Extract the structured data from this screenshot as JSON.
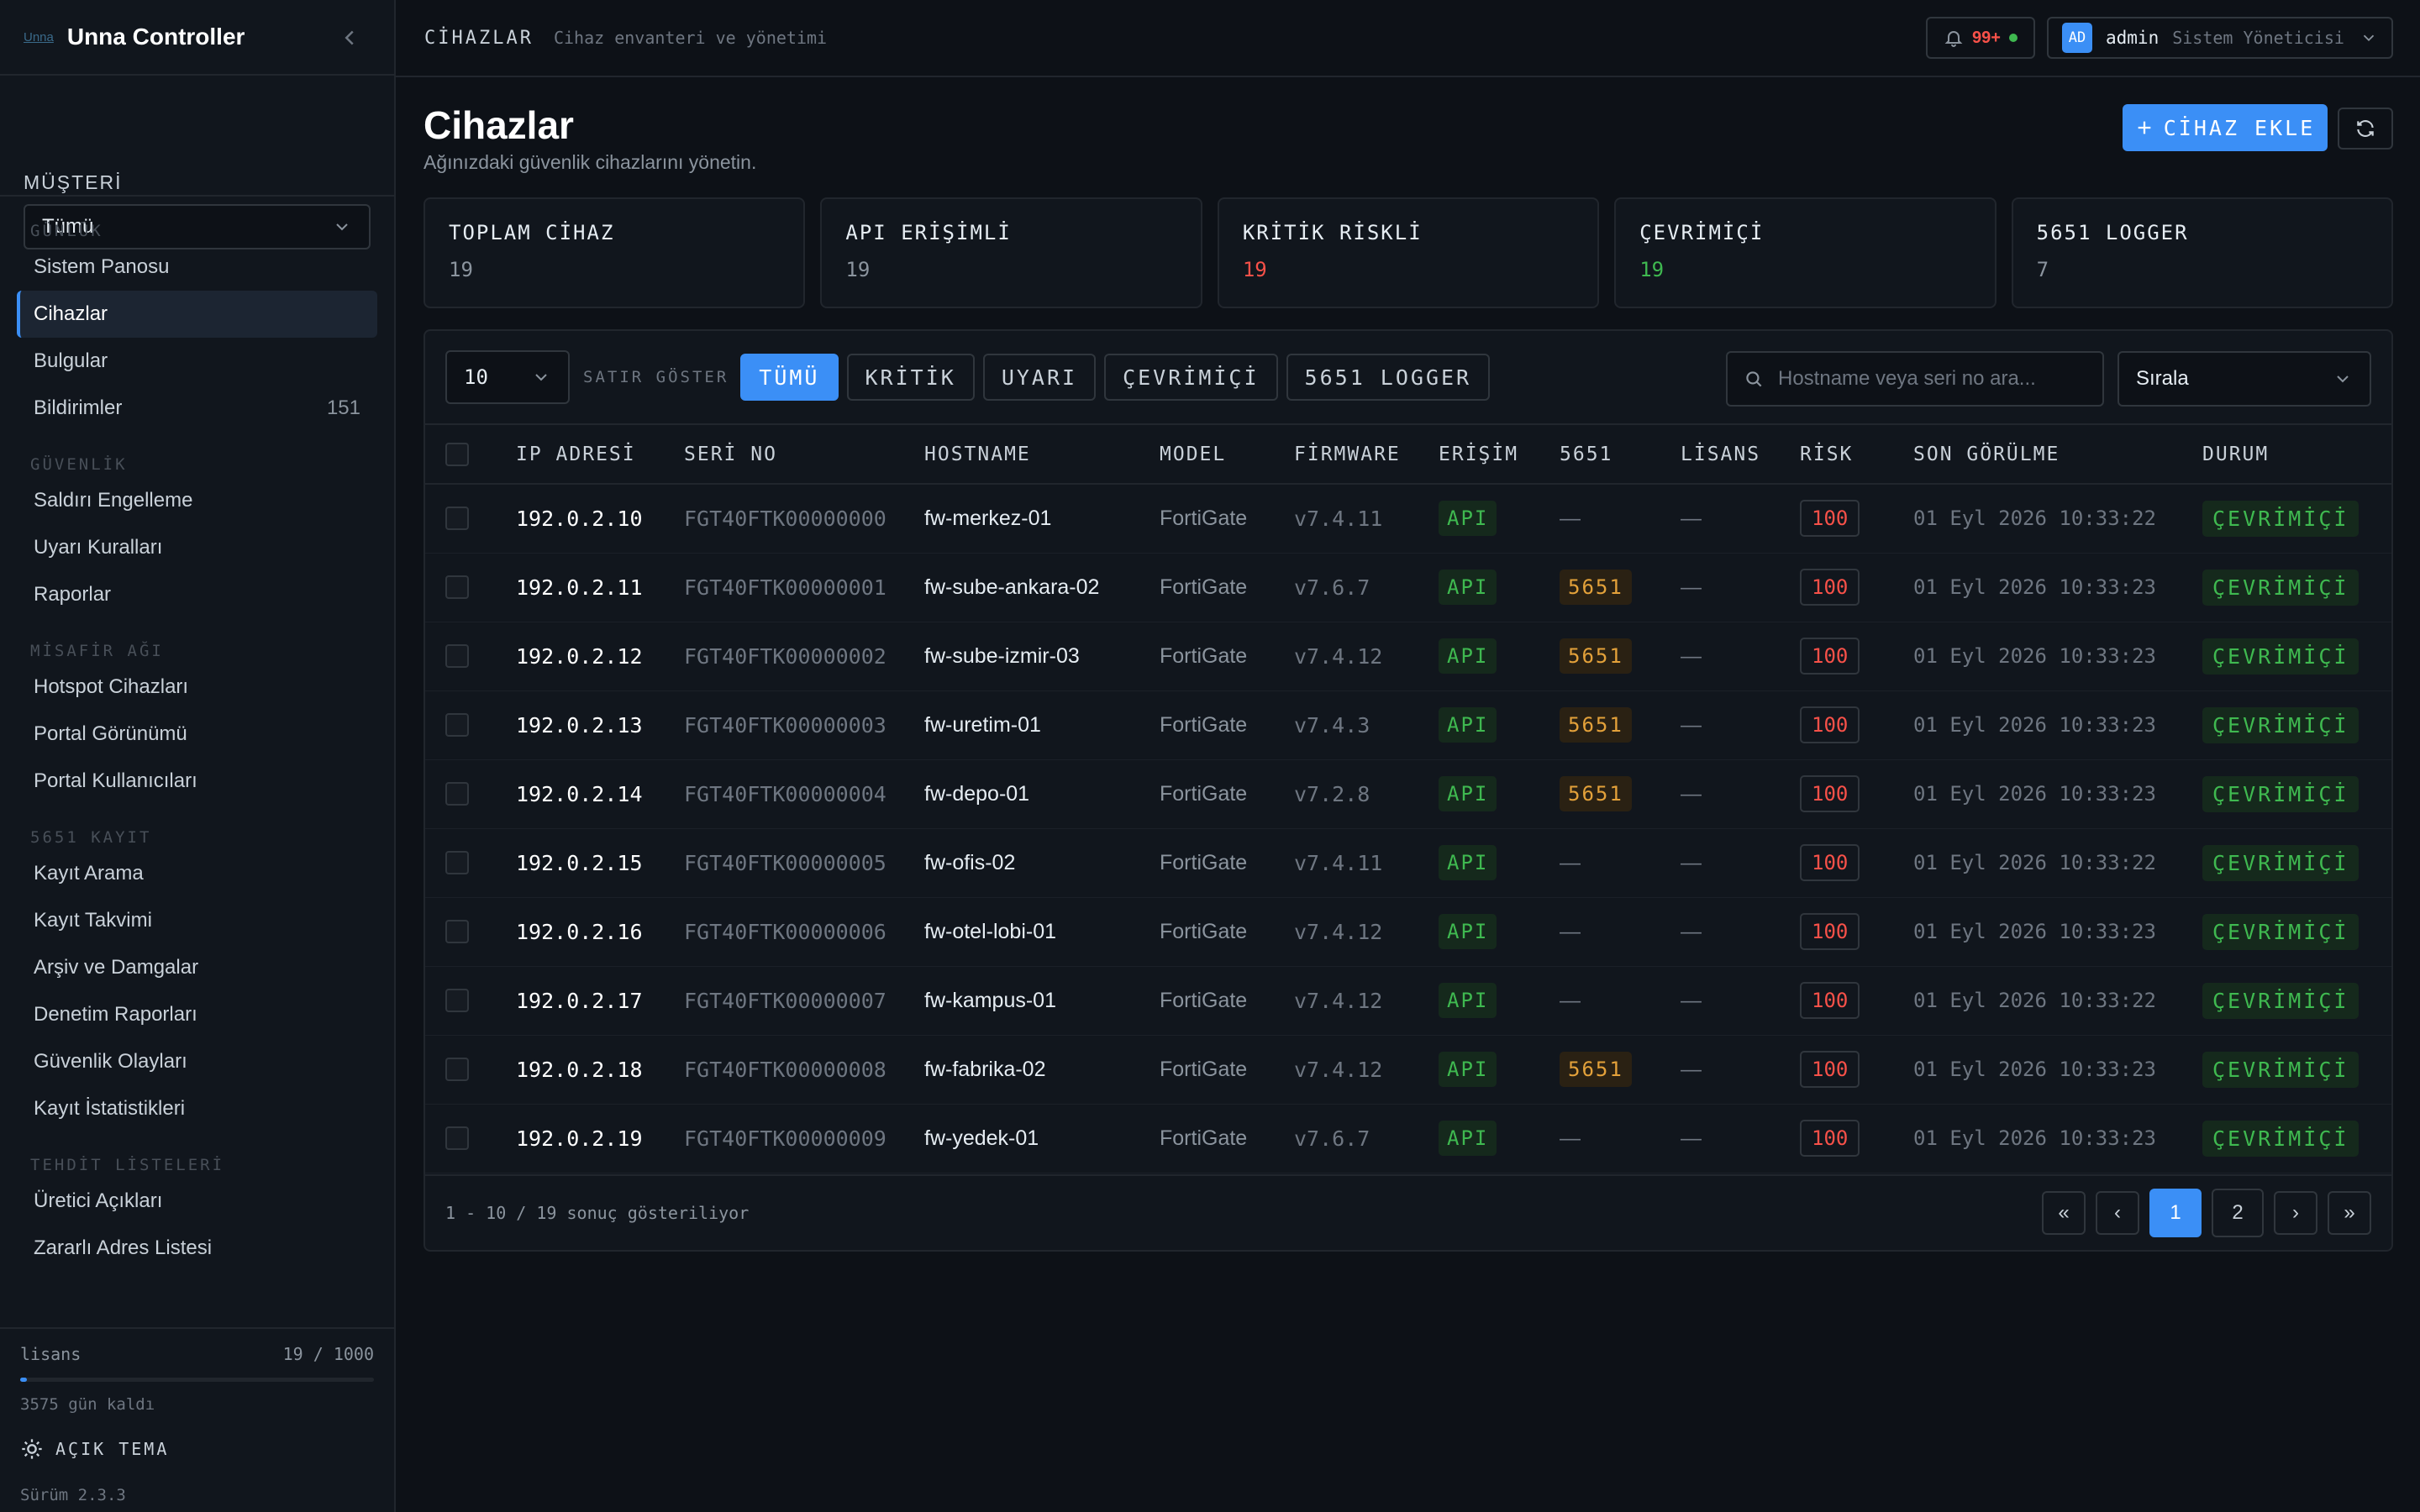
{
  "brand": {
    "logo_text": "Unna",
    "title": "Unna Controller"
  },
  "customer": {
    "label": "MÜŞTERİ",
    "value": "Tümü"
  },
  "nav": [
    {
      "section": "GÜNLÜK",
      "items": [
        {
          "label": "Sistem Panosu",
          "count": "",
          "active": false
        },
        {
          "label": "Cihazlar",
          "count": "",
          "active": true
        },
        {
          "label": "Bulgular",
          "count": "",
          "active": false
        },
        {
          "label": "Bildirimler",
          "count": "151",
          "active": false
        }
      ]
    },
    {
      "section": "GÜVENLİK",
      "items": [
        {
          "label": "Saldırı Engelleme",
          "count": "",
          "active": false
        },
        {
          "label": "Uyarı Kuralları",
          "count": "",
          "active": false
        },
        {
          "label": "Raporlar",
          "count": "",
          "active": false
        }
      ]
    },
    {
      "section": "MİSAFİR AĞI",
      "items": [
        {
          "label": "Hotspot Cihazları",
          "count": "",
          "active": false
        },
        {
          "label": "Portal Görünümü",
          "count": "",
          "active": false
        },
        {
          "label": "Portal Kullanıcıları",
          "count": "",
          "active": false
        }
      ]
    },
    {
      "section": "5651 KAYIT",
      "items": [
        {
          "label": "Kayıt Arama",
          "count": "",
          "active": false
        },
        {
          "label": "Kayıt Takvimi",
          "count": "",
          "active": false
        },
        {
          "label": "Arşiv ve Damgalar",
          "count": "",
          "active": false
        },
        {
          "label": "Denetim Raporları",
          "count": "",
          "active": false
        },
        {
          "label": "Güvenlik Olayları",
          "count": "",
          "active": false
        },
        {
          "label": "Kayıt İstatistikleri",
          "count": "",
          "active": false
        }
      ]
    },
    {
      "section": "TEHDİT LİSTELERİ",
      "items": [
        {
          "label": "Üretici Açıkları",
          "count": "",
          "active": false
        },
        {
          "label": "Zararlı Adres Listesi",
          "count": "",
          "active": false
        }
      ]
    }
  ],
  "license": {
    "label": "lisans",
    "usage": "19 / 1000",
    "used_fraction": 0.019,
    "days_left": "3575 gün kaldı"
  },
  "theme_toggle": "AÇIK TEMA",
  "version": "Sürüm 2.3.3",
  "topbar": {
    "title": "CİHAZLAR",
    "subtitle": "Cihaz envanteri ve yönetimi",
    "notif_count": "99+",
    "avatar": "AD",
    "user": "admin",
    "role": "Sistem Yöneticisi"
  },
  "page": {
    "title": "Cihazlar",
    "subtitle": "Ağınızdaki güvenlik cihazlarını yönetin.",
    "add_button": "CİHAZ EKLE"
  },
  "stats": [
    {
      "label": "TOPLAM CİHAZ",
      "value": "19",
      "color": "#8b949e"
    },
    {
      "label": "API ERİŞİMLİ",
      "value": "19",
      "color": "#8b949e"
    },
    {
      "label": "KRİTİK RİSKLİ",
      "value": "19",
      "color": "#f85149"
    },
    {
      "label": "ÇEVRİMİÇİ",
      "value": "19",
      "color": "#3fb950"
    },
    {
      "label": "5651 LOGGER",
      "value": "7",
      "color": "#8b949e"
    }
  ],
  "toolbar": {
    "page_size": "10",
    "rows_label": "SATIR GÖSTER",
    "filters": [
      {
        "label": "TÜMÜ",
        "active": true
      },
      {
        "label": "KRİTİK",
        "active": false
      },
      {
        "label": "UYARI",
        "active": false
      },
      {
        "label": "ÇEVRİMİÇİ",
        "active": false
      },
      {
        "label": "5651 LOGGER",
        "active": false
      }
    ],
    "search_placeholder": "Hostname veya seri no ara...",
    "sort_label": "Sırala"
  },
  "table": {
    "columns": [
      "IP ADRESİ",
      "SERİ NO",
      "HOSTNAME",
      "MODEL",
      "FİRMWARE",
      "ERİŞİM",
      "5651",
      "LİSANS",
      "RİSK",
      "SON GÖRÜLME",
      "DURUM"
    ],
    "rows": [
      {
        "ip": "192.0.2.10",
        "serial": "FGT40FTK00000000",
        "hostname": "fw-merkez-01",
        "model": "FortiGate",
        "firmware": "v7.4.11",
        "access": "API",
        "logger": "—",
        "license": "—",
        "risk": "100",
        "last_seen": "01 Eyl 2026 10:33:22",
        "status": "ÇEVRİMİÇİ"
      },
      {
        "ip": "192.0.2.11",
        "serial": "FGT40FTK00000001",
        "hostname": "fw-sube-ankara-02",
        "model": "FortiGate",
        "firmware": "v7.6.7",
        "access": "API",
        "logger": "5651",
        "license": "—",
        "risk": "100",
        "last_seen": "01 Eyl 2026 10:33:23",
        "status": "ÇEVRİMİÇİ"
      },
      {
        "ip": "192.0.2.12",
        "serial": "FGT40FTK00000002",
        "hostname": "fw-sube-izmir-03",
        "model": "FortiGate",
        "firmware": "v7.4.12",
        "access": "API",
        "logger": "5651",
        "license": "—",
        "risk": "100",
        "last_seen": "01 Eyl 2026 10:33:23",
        "status": "ÇEVRİMİÇİ"
      },
      {
        "ip": "192.0.2.13",
        "serial": "FGT40FTK00000003",
        "hostname": "fw-uretim-01",
        "model": "FortiGate",
        "firmware": "v7.4.3",
        "access": "API",
        "logger": "5651",
        "license": "—",
        "risk": "100",
        "last_seen": "01 Eyl 2026 10:33:23",
        "status": "ÇEVRİMİÇİ"
      },
      {
        "ip": "192.0.2.14",
        "serial": "FGT40FTK00000004",
        "hostname": "fw-depo-01",
        "model": "FortiGate",
        "firmware": "v7.2.8",
        "access": "API",
        "logger": "5651",
        "license": "—",
        "risk": "100",
        "last_seen": "01 Eyl 2026 10:33:23",
        "status": "ÇEVRİMİÇİ"
      },
      {
        "ip": "192.0.2.15",
        "serial": "FGT40FTK00000005",
        "hostname": "fw-ofis-02",
        "model": "FortiGate",
        "firmware": "v7.4.11",
        "access": "API",
        "logger": "—",
        "license": "—",
        "risk": "100",
        "last_seen": "01 Eyl 2026 10:33:22",
        "status": "ÇEVRİMİÇİ"
      },
      {
        "ip": "192.0.2.16",
        "serial": "FGT40FTK00000006",
        "hostname": "fw-otel-lobi-01",
        "model": "FortiGate",
        "firmware": "v7.4.12",
        "access": "API",
        "logger": "—",
        "license": "—",
        "risk": "100",
        "last_seen": "01 Eyl 2026 10:33:23",
        "status": "ÇEVRİMİÇİ"
      },
      {
        "ip": "192.0.2.17",
        "serial": "FGT40FTK00000007",
        "hostname": "fw-kampus-01",
        "model": "FortiGate",
        "firmware": "v7.4.12",
        "access": "API",
        "logger": "—",
        "license": "—",
        "risk": "100",
        "last_seen": "01 Eyl 2026 10:33:22",
        "status": "ÇEVRİMİÇİ"
      },
      {
        "ip": "192.0.2.18",
        "serial": "FGT40FTK00000008",
        "hostname": "fw-fabrika-02",
        "model": "FortiGate",
        "firmware": "v7.4.12",
        "access": "API",
        "logger": "5651",
        "license": "—",
        "risk": "100",
        "last_seen": "01 Eyl 2026 10:33:23",
        "status": "ÇEVRİMİÇİ"
      },
      {
        "ip": "192.0.2.19",
        "serial": "FGT40FTK00000009",
        "hostname": "fw-yedek-01",
        "model": "FortiGate",
        "firmware": "v7.6.7",
        "access": "API",
        "logger": "—",
        "license": "—",
        "risk": "100",
        "last_seen": "01 Eyl 2026 10:33:23",
        "status": "ÇEVRİMİÇİ"
      }
    ]
  },
  "pager": {
    "info": "1 - 10 / 19 sonuç gösteriliyor",
    "first": "«",
    "prev": "‹",
    "pages": [
      "1",
      "2"
    ],
    "current": "1",
    "next": "›",
    "last": "»"
  }
}
